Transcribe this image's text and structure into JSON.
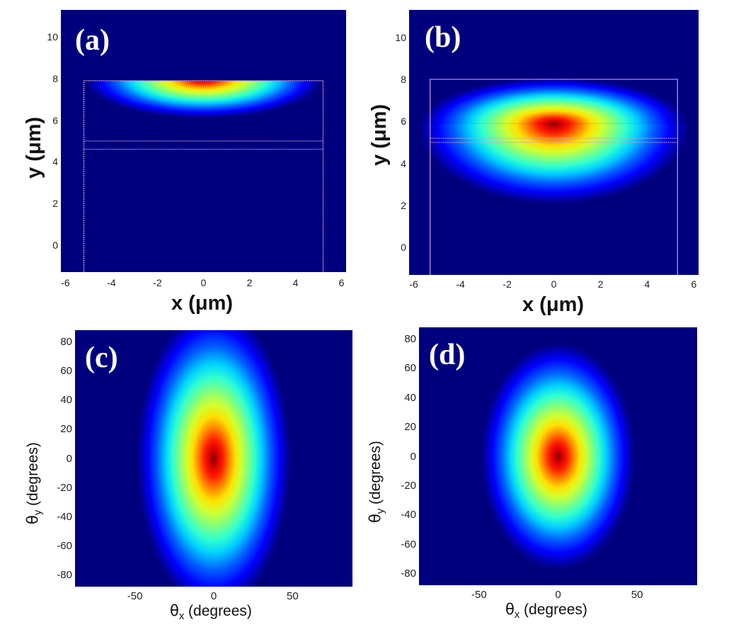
{
  "chart_data": [
    {
      "type": "heatmap",
      "panel": "(a)",
      "xlabel": "x (μm)",
      "ylabel": "y (μm)",
      "xlim": [
        -6.2,
        6.2
      ],
      "ylim": [
        -1.3,
        11.3
      ],
      "xticks": [
        -6,
        -4,
        -2,
        0,
        2,
        4,
        6
      ],
      "yticks": [
        0,
        2,
        4,
        6,
        8,
        10
      ],
      "colormap": "jet",
      "field": {
        "peak_x": 0,
        "peak_y": 8.0,
        "sigma_x": 4.3,
        "sigma_y": 1.3,
        "clipped_above_y": 7.9
      },
      "waveguide_outline": {
        "x_min": -5.2,
        "x_max": 5.2,
        "y_top": 7.9,
        "core_lines_y": [
          5.0,
          4.6
        ]
      }
    },
    {
      "type": "heatmap",
      "panel": "(b)",
      "xlabel": "x (μm)",
      "ylabel": "y (μm)",
      "xlim": [
        -6.2,
        6.2
      ],
      "ylim": [
        -1.3,
        11.3
      ],
      "xticks": [
        -6,
        -4,
        -2,
        0,
        2,
        4,
        6
      ],
      "yticks": [
        0,
        2,
        4,
        6,
        8,
        10
      ],
      "colormap": "jet",
      "field": {
        "peak_x": 0,
        "peak_y": 5.9,
        "sigma_x": 4.2,
        "sigma_up": 1.2,
        "sigma_down": 2.0
      },
      "waveguide_outline": {
        "x_min": -5.3,
        "x_max": 5.3,
        "y_top": 8.0,
        "core_lines_y": [
          5.2,
          5.0
        ]
      }
    },
    {
      "type": "heatmap",
      "panel": "(c)",
      "xlabel": "θx (degrees)",
      "ylabel": "θy (degrees)",
      "xlim": [
        -88,
        88
      ],
      "ylim": [
        -88,
        88
      ],
      "xticks": [
        -50,
        0,
        50
      ],
      "yticks": [
        80,
        60,
        40,
        20,
        0,
        -20,
        -40,
        -60,
        -80
      ],
      "colormap": "jet",
      "field": {
        "peak_x": 0,
        "peak_y": 0,
        "sigma_x": 22,
        "sigma_y": 47
      }
    },
    {
      "type": "heatmap",
      "panel": "(d)",
      "xlabel": "θx (degrees)",
      "ylabel": "θy (degrees)",
      "xlim": [
        -88,
        88
      ],
      "ylim": [
        -88,
        88
      ],
      "xticks": [
        -50,
        0,
        50
      ],
      "yticks": [
        80,
        60,
        40,
        20,
        0,
        -20,
        -40,
        -60,
        -80
      ],
      "colormap": "jet",
      "field": {
        "peak_x": 0,
        "peak_y": 0,
        "sigma_x": 22,
        "sigma_y": 35
      }
    }
  ],
  "labels": {
    "a": "(a)",
    "b": "(b)",
    "c": "(c)",
    "d": "(d)",
    "x_um": "x (μm)",
    "y_um": "y (μm)",
    "theta": "θ",
    "theta_x_sub": "x",
    "theta_y_sub": "y",
    "degrees": " (degrees)"
  },
  "colors": {
    "background": "#00007f",
    "outline": "#c8a0c8"
  }
}
